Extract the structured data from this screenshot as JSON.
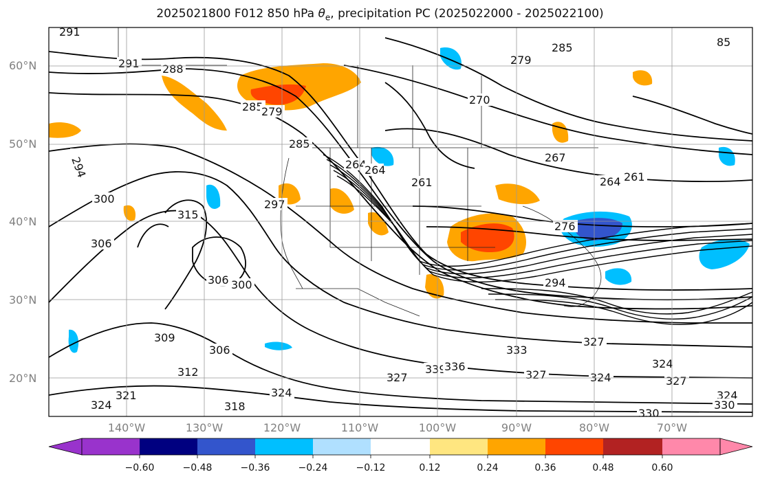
{
  "title": {
    "prefix": "2025021800 F012 850 hPa ",
    "symbol": "θ",
    "subscript": "e",
    "suffix": ", precipitation PC (2025022000 - 2025022100)"
  },
  "axes": {
    "lon_ticks": [
      "140°W",
      "130°W",
      "120°W",
      "110°W",
      "100°W",
      "90°W",
      "80°W",
      "70°W"
    ],
    "lat_ticks": [
      "60°N",
      "50°N",
      "40°N",
      "30°N",
      "20°N"
    ],
    "tick_color": "#808080"
  },
  "contour_labels": [
    "291",
    "291",
    "288",
    "285",
    "279",
    "294",
    "285",
    "264",
    "264",
    "261",
    "270",
    "279",
    "285",
    "267",
    "264",
    "261",
    "300",
    "315",
    "297",
    "276",
    "306",
    "306",
    "300",
    "294",
    "309",
    "306",
    "312",
    "321",
    "324",
    "318",
    "324",
    "327",
    "339",
    "336",
    "333",
    "327",
    "324",
    "327",
    "324",
    "327",
    "324",
    "330",
    "330",
    "85"
  ],
  "colorbar": {
    "ticks": [
      "−0.60",
      "−0.48",
      "−0.36",
      "−0.24",
      "−0.12",
      "0.12",
      "0.24",
      "0.36",
      "0.48",
      "0.60"
    ],
    "colors": [
      "#9933cc",
      "#000080",
      "#3355cc",
      "#00bfff",
      "#b0e0ff",
      "#ffffff",
      "#ffe680",
      "#ffa500",
      "#ff4500",
      "#b22222",
      "#ff88aa"
    ]
  },
  "shading_colors": {
    "neg_light": "#b0e0ff",
    "neg_mid": "#00bfff",
    "neg_dark": "#3355cc",
    "pos_light": "#ffe680",
    "pos_mid": "#ffa500",
    "pos_dark": "#ff4500"
  }
}
